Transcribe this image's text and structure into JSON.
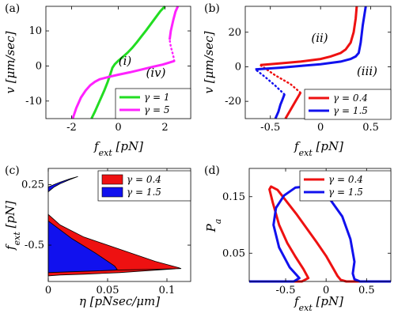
{
  "chart_data": [
    {
      "panel": "(a)",
      "type": "line",
      "xlabel": "f_ext [pN]",
      "ylabel": "v [μm/sec]",
      "xlim": [
        -3.1,
        3.1
      ],
      "ylim": [
        -15,
        17
      ],
      "xticks": [
        "-2",
        "0",
        "2"
      ],
      "yticks": [
        "-10",
        "0",
        "10"
      ],
      "xtick_values": [
        -2,
        0,
        2
      ],
      "ytick_values": [
        -10,
        0,
        10
      ],
      "annotations": [
        "(i)",
        "(iv)"
      ],
      "legend": {
        "placement": "bottom-right"
      },
      "series": [
        {
          "name": "γ = 1",
          "color": "#22dd22",
          "x": [
            -1.15,
            -1.0,
            -0.8,
            -0.6,
            -0.45,
            -0.35,
            -0.25,
            -0.15,
            0.0,
            0.2,
            0.4,
            0.6,
            0.8,
            1.0,
            1.2,
            1.4,
            1.6,
            1.8,
            2.0
          ],
          "y": [
            -15,
            -13,
            -10,
            -7,
            -4.5,
            -2.5,
            -0.5,
            0.5,
            1.5,
            2.6,
            3.8,
            5.2,
            6.8,
            8.5,
            10.2,
            12,
            13.8,
            15.6,
            17
          ]
        },
        {
          "name": "γ = 5",
          "color": "#ff22ff",
          "x": [
            -1.95,
            -1.8,
            -1.6,
            -1.4,
            -1.2,
            -1.0,
            -0.8,
            -0.4,
            0.0,
            0.5,
            1.0,
            1.5,
            1.9,
            2.15,
            2.3,
            2.4
          ],
          "y": [
            -15,
            -12,
            -9,
            -7,
            -5.5,
            -4.5,
            -3.8,
            -3.1,
            -2.5,
            -1.8,
            -1.0,
            -0.2,
            0.4,
            0.9,
            1.2,
            1.4
          ],
          "x_dotted": [
            2.4,
            2.35,
            2.25,
            2.2
          ],
          "y_dotted": [
            1.4,
            3.0,
            5.5,
            7.5
          ],
          "x_upper": [
            2.2,
            2.25,
            2.35,
            2.45,
            2.55
          ],
          "y_upper": [
            7.5,
            10,
            13,
            15.5,
            17
          ]
        }
      ]
    },
    {
      "panel": "(b)",
      "type": "line",
      "xlabel": "f_ext [pN]",
      "ylabel": "v [μm/sec]",
      "xlim": [
        -0.75,
        0.7
      ],
      "ylim": [
        -30,
        35
      ],
      "xticks": [
        "-0.5",
        "0",
        "0.5"
      ],
      "yticks": [
        "-20",
        "0",
        "20"
      ],
      "xtick_values": [
        -0.5,
        0,
        0.5
      ],
      "ytick_values": [
        -20,
        0,
        20
      ],
      "annotations": [
        "(ii)",
        "(iii)"
      ],
      "legend": {
        "placement": "bottom-right"
      },
      "series": [
        {
          "name": "γ = 0.4",
          "color": "#ee1111",
          "x": [
            -0.6,
            -0.4,
            -0.2,
            0.0,
            0.1,
            0.2,
            0.25,
            0.3,
            0.33,
            0.35,
            0.36
          ],
          "y": [
            1.0,
            2.0,
            3.0,
            4.5,
            6,
            8,
            10,
            14,
            20,
            28,
            35
          ],
          "x_lower": [
            -0.35,
            -0.3,
            -0.25,
            -0.22,
            -0.2
          ],
          "y_lower": [
            -30,
            -25,
            -20,
            -17,
            -15
          ],
          "x_dotted": [
            -0.2,
            -0.3,
            -0.45,
            -0.6
          ],
          "y_dotted": [
            -15,
            -10,
            -5,
            1
          ]
        },
        {
          "name": "γ = 1.5",
          "color": "#1111ee",
          "x": [
            -0.65,
            -0.4,
            -0.2,
            0.0,
            0.2,
            0.3,
            0.35,
            0.38,
            0.4,
            0.42,
            0.45
          ],
          "y": [
            -1.5,
            -0.5,
            0.5,
            1.5,
            3.0,
            4.5,
            6,
            8,
            14,
            24,
            35
          ],
          "x_lower": [
            -0.45,
            -0.42,
            -0.4,
            -0.38,
            -0.36
          ],
          "y_lower": [
            -30,
            -26,
            -22,
            -19,
            -16
          ],
          "x_dotted": [
            -0.36,
            -0.45,
            -0.55,
            -0.65
          ],
          "y_dotted": [
            -16,
            -11,
            -6,
            -1.5
          ]
        }
      ]
    },
    {
      "panel": "(c)",
      "type": "area",
      "xlabel": "η [pNsec/μm]",
      "ylabel": "f_ext [pN]",
      "xlim": [
        0,
        0.12
      ],
      "ylim": [
        -0.95,
        0.45
      ],
      "xticks": [
        "0",
        "0.05",
        "0.1"
      ],
      "yticks": [
        "0.25",
        "-0.5"
      ],
      "xtick_values": [
        0,
        0.05,
        0.1
      ],
      "ytick_values": [
        0.25,
        -0.5
      ],
      "legend": {
        "placement": "top-right"
      },
      "series": [
        {
          "name": "γ = 0.4",
          "color": "#ee1111",
          "x": [
            0,
            0.01,
            0.03,
            0.06,
            0.09,
            0.11,
            0.112,
            0.09,
            0.05,
            0.02,
            0.0
          ],
          "y_upper": [
            -0.12,
            -0.25,
            -0.4,
            -0.55,
            -0.7,
            -0.78,
            -0.79,
            -0.8,
            -0.81,
            -0.82,
            -0.82
          ],
          "y_lower": [
            -0.88,
            -0.87,
            -0.86,
            -0.84,
            -0.81,
            -0.79,
            -0.79,
            -0.8,
            -0.81,
            -0.82,
            -0.82
          ]
        },
        {
          "name": "γ = 1.5",
          "color": "#1111ee",
          "x": [
            0,
            0.02,
            0.04,
            0.056,
            0.058
          ],
          "y_upper": [
            -0.2,
            -0.42,
            -0.6,
            -0.76,
            -0.8
          ],
          "y_lower": [
            -0.84,
            -0.83,
            -0.82,
            -0.81,
            -0.8
          ]
        },
        {
          "name": "γ = 1.5 (upper)",
          "color": "#1111ee",
          "x": [
            0,
            0.005,
            0.01,
            0.018,
            0.025
          ],
          "y_upper": [
            0.22,
            0.25,
            0.28,
            0.32,
            0.35
          ],
          "y_lower": [
            0.16,
            0.22,
            0.26,
            0.31,
            0.35
          ]
        }
      ]
    },
    {
      "panel": "(d)",
      "type": "line",
      "xlabel": "f_ext [pN]",
      "ylabel": "P_a",
      "xlim": [
        -0.95,
        0.8
      ],
      "ylim": [
        0,
        0.2
      ],
      "xticks": [
        "-0.5",
        "0",
        "0.5"
      ],
      "yticks": [
        "0.05",
        "0.15"
      ],
      "xtick_values": [
        -0.5,
        0,
        0.5
      ],
      "ytick_values": [
        0.05,
        0.15
      ],
      "legend": {
        "placement": "top-right"
      },
      "series": [
        {
          "name": "γ = 0.4",
          "color": "#ee1111",
          "x": [
            -0.95,
            -0.3,
            -0.22,
            -0.28,
            -0.38,
            -0.48,
            -0.58,
            -0.66,
            -0.7,
            -0.68,
            -0.6,
            -0.48,
            -0.36,
            -0.24,
            -0.12,
            0.0,
            0.08,
            0.14,
            0.18,
            0.25,
            0.8
          ],
          "y": [
            0.0,
            0.0,
            0.006,
            0.022,
            0.044,
            0.068,
            0.1,
            0.14,
            0.163,
            0.168,
            0.162,
            0.14,
            0.118,
            0.094,
            0.07,
            0.045,
            0.025,
            0.01,
            0.003,
            0.0,
            0.0
          ]
        },
        {
          "name": "γ = 1.5",
          "color": "#1111ee",
          "x": [
            -0.95,
            -0.4,
            -0.33,
            -0.45,
            -0.58,
            -0.65,
            -0.62,
            -0.52,
            -0.38,
            -0.25,
            -0.1,
            0.05,
            0.2,
            0.3,
            0.35,
            0.33,
            0.35,
            0.42,
            0.8
          ],
          "y": [
            0.0,
            0.0,
            0.006,
            0.025,
            0.06,
            0.1,
            0.13,
            0.152,
            0.166,
            0.168,
            0.162,
            0.145,
            0.115,
            0.075,
            0.035,
            0.014,
            0.004,
            0.0,
            0.0
          ]
        }
      ]
    }
  ]
}
